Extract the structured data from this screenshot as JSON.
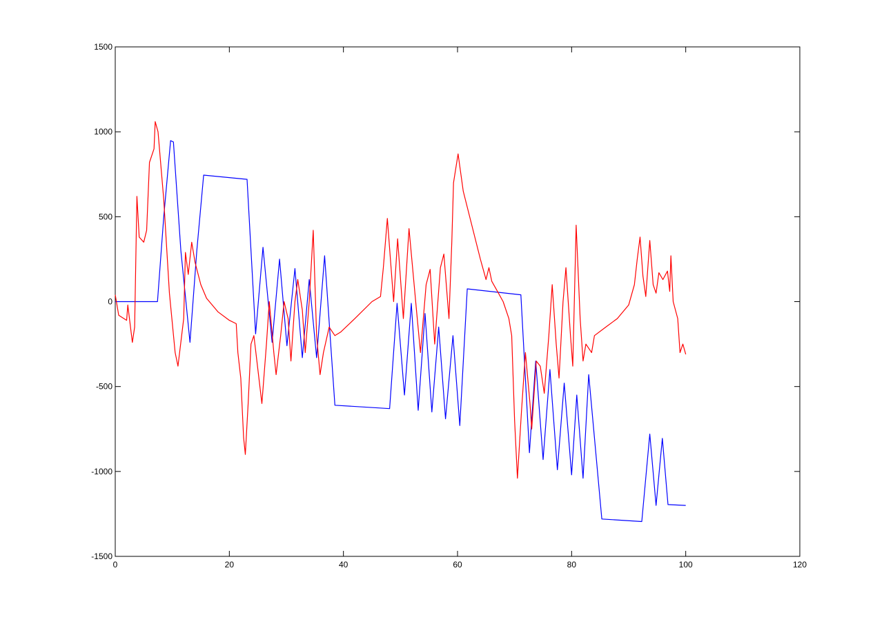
{
  "chart_data": {
    "type": "line",
    "xlim": [
      0,
      120
    ],
    "xticks": [
      0,
      20,
      40,
      60,
      80,
      100,
      120
    ],
    "ylim": [
      -1500,
      1500
    ],
    "yticks": [
      -1500,
      -1000,
      -500,
      0,
      500,
      1000,
      1500
    ],
    "grid": false,
    "series": [
      {
        "color": "#0000ff",
        "x": [
          0,
          7.4,
          8.5,
          9.7,
          10.2,
          11.5,
          13.1,
          14.3,
          15.5,
          23.1,
          24.6,
          25.9,
          27.5,
          28.8,
          30.1,
          31.5,
          32.8,
          34,
          35.3,
          36.7,
          38.5,
          48.1,
          49.4,
          50.7,
          51.9,
          53.1,
          54.3,
          55.5,
          56.7,
          57.9,
          59.2,
          60.4,
          61.7,
          71.1,
          72.6,
          73.7,
          75,
          76.2,
          77.5,
          78.7,
          80,
          80.9,
          82,
          83,
          85.3,
          92.3,
          93.7,
          94.8,
          95.9,
          96.9,
          100
        ],
        "values": [
          0,
          0,
          500,
          948,
          940,
          300,
          -240,
          300,
          745,
          720,
          -190,
          320,
          -240,
          250,
          -260,
          195,
          -330,
          130,
          -330,
          270,
          -610,
          -630,
          -10,
          -550,
          -10,
          -640,
          -70,
          -650,
          -150,
          -690,
          -200,
          -730,
          75,
          40,
          -890,
          -350,
          -930,
          -400,
          -990,
          -480,
          -1020,
          -550,
          -1040,
          -430,
          -1280,
          -1295,
          -780,
          -1200,
          -805,
          -1195,
          -1200
        ]
      },
      {
        "color": "#ff0000",
        "x": [
          0,
          0.6,
          2,
          2.2,
          3,
          3.4,
          3.8,
          4.2,
          5,
          5.5,
          6,
          6.8,
          7,
          7.5,
          8.5,
          9.5,
          10.5,
          11,
          12,
          12.3,
          12.8,
          13.4,
          14,
          15,
          16,
          18,
          20,
          21.2,
          21.5,
          22,
          22.5,
          22.8,
          23.3,
          23.8,
          24.3,
          25,
          25.7,
          26.5,
          27,
          27.8,
          28.2,
          29,
          29.6,
          30.3,
          30.8,
          31.5,
          32,
          32.8,
          33.3,
          34,
          34.7,
          35.3,
          35.9,
          36.5,
          37.5,
          38.5,
          39.5,
          42,
          45,
          46.5,
          47,
          47.7,
          48.8,
          49.5,
          50.5,
          51.5,
          52.8,
          53.5,
          54.5,
          55.2,
          56,
          57,
          57.6,
          58.5,
          59,
          59.3,
          60.1,
          61,
          62.5,
          64,
          65,
          65.5,
          66,
          67,
          68,
          69,
          69.5,
          70,
          70.5,
          71.2,
          71.9,
          72.7,
          73,
          73.8,
          74.5,
          75.2,
          76,
          76.6,
          77.3,
          77.8,
          78.5,
          79,
          79.8,
          80.2,
          80.8,
          81.5,
          82,
          82.5,
          83.5,
          84,
          86,
          88,
          90,
          91,
          91.5,
          92,
          92.5,
          93,
          93.7,
          94.3,
          94.8,
          95.3,
          96,
          96.8,
          97.2,
          97.4,
          97.8,
          98.6,
          99,
          99.5,
          100
        ],
        "values": [
          40,
          -80,
          -110,
          -20,
          -240,
          -150,
          620,
          380,
          350,
          420,
          820,
          900,
          1060,
          1000,
          600,
          50,
          -300,
          -380,
          -100,
          290,
          160,
          350,
          230,
          100,
          20,
          -60,
          -110,
          -130,
          -300,
          -450,
          -800,
          -900,
          -600,
          -250,
          -200,
          -400,
          -600,
          -250,
          0,
          -300,
          -430,
          -200,
          0,
          -100,
          -350,
          0,
          130,
          -50,
          -300,
          0,
          420,
          -200,
          -430,
          -300,
          -150,
          -200,
          -180,
          -100,
          0,
          30,
          200,
          490,
          0,
          370,
          -100,
          430,
          -50,
          -300,
          100,
          190,
          -250,
          200,
          280,
          -100,
          350,
          700,
          870,
          650,
          450,
          250,
          130,
          200,
          120,
          60,
          0,
          -100,
          -200,
          -700,
          -1040,
          -650,
          -300,
          -600,
          -750,
          -350,
          -380,
          -540,
          -200,
          100,
          -250,
          -450,
          0,
          200,
          -200,
          -380,
          450,
          -100,
          -350,
          -250,
          -300,
          -200,
          -150,
          -100,
          -20,
          100,
          250,
          380,
          150,
          30,
          360,
          100,
          50,
          170,
          130,
          180,
          60,
          270,
          0,
          -100,
          -300,
          -250,
          -310
        ]
      }
    ]
  }
}
